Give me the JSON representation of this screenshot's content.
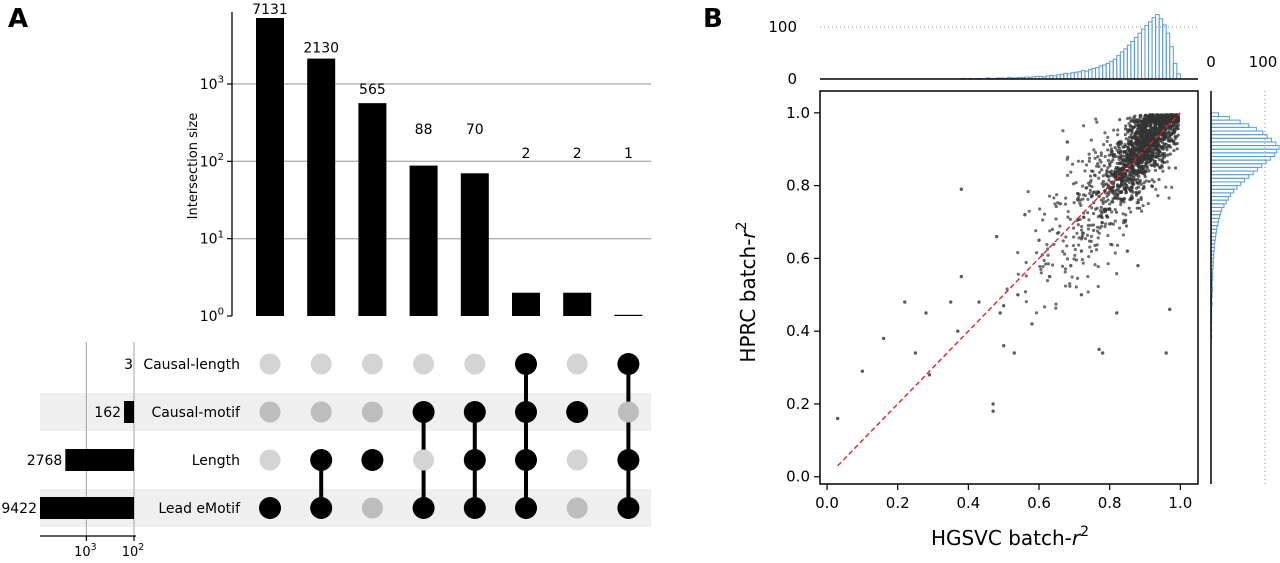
{
  "panel_labels": [
    "A",
    "B"
  ],
  "chart_data": [
    {
      "type": "bar",
      "panel": "A",
      "subtype": "upset",
      "ylabel": "Intersection size",
      "yscale": "log",
      "ylim": [
        1,
        7131
      ],
      "y_ticks": [
        {
          "base": "10",
          "exp": "0",
          "value": 1
        },
        {
          "base": "10",
          "exp": "1",
          "value": 10
        },
        {
          "base": "10",
          "exp": "2",
          "value": 100
        },
        {
          "base": "10",
          "exp": "3",
          "value": 1000
        }
      ],
      "intersections": [
        {
          "value": 7131,
          "label": "7131",
          "members": [
            false,
            false,
            false,
            true
          ]
        },
        {
          "value": 2130,
          "label": "2130",
          "members": [
            false,
            false,
            true,
            true
          ]
        },
        {
          "value": 565,
          "label": "565",
          "members": [
            false,
            false,
            true,
            false
          ]
        },
        {
          "value": 88,
          "label": "88",
          "members": [
            false,
            true,
            false,
            true
          ]
        },
        {
          "value": 70,
          "label": "70",
          "members": [
            false,
            true,
            true,
            true
          ]
        },
        {
          "value": 2,
          "label": "2",
          "members": [
            true,
            true,
            true,
            true
          ]
        },
        {
          "value": 2,
          "label": "2",
          "members": [
            false,
            true,
            false,
            false
          ]
        },
        {
          "value": 1,
          "label": "1",
          "members": [
            true,
            false,
            true,
            true
          ]
        }
      ],
      "sets": [
        {
          "name": "Causal-length",
          "size": 3,
          "label": "3"
        },
        {
          "name": "Causal-motif",
          "size": 162,
          "label": "162"
        },
        {
          "name": "Length",
          "size": 2768,
          "label": "2768"
        },
        {
          "name": "Lead eMotif",
          "size": 9422,
          "label": "9422"
        }
      ],
      "set_size_ticks": [
        {
          "base": "10",
          "exp": "3",
          "value": 1000
        },
        {
          "base": "10",
          "exp": "2",
          "value": 100
        }
      ],
      "colors": {
        "bar": "#000000",
        "dot_on": "#000000",
        "dot_off_light": "#d4d4d4",
        "dot_off_shade": "#bdbdbd",
        "stripe": "#efefef"
      }
    },
    {
      "type": "scatter",
      "panel": "B",
      "xlabel": "HGSVC batch-",
      "ylabel": "HPRC batch-",
      "label_symbol": "r",
      "label_exponent": "2",
      "xlim": [
        -0.02,
        1.05
      ],
      "ylim": [
        -0.02,
        1.06
      ],
      "x_ticks": [
        "0.0",
        "0.2",
        "0.4",
        "0.6",
        "0.8",
        "1.0"
      ],
      "y_ticks": [
        "0.0",
        "0.2",
        "0.4",
        "0.6",
        "0.8",
        "1.0"
      ],
      "diagonal": {
        "from": [
          0.03,
          0.03
        ],
        "to": [
          1.0,
          1.0
        ],
        "color": "#d62728",
        "style": "dashed"
      },
      "outliers": [
        [
          0.03,
          0.16
        ],
        [
          0.1,
          0.29
        ],
        [
          0.16,
          0.38
        ],
        [
          0.22,
          0.48
        ],
        [
          0.25,
          0.34
        ],
        [
          0.28,
          0.45
        ],
        [
          0.29,
          0.28
        ],
        [
          0.35,
          0.48
        ],
        [
          0.37,
          0.4
        ],
        [
          0.38,
          0.79
        ],
        [
          0.38,
          0.55
        ],
        [
          0.43,
          0.48
        ],
        [
          0.47,
          0.2
        ],
        [
          0.47,
          0.18
        ],
        [
          0.5,
          0.36
        ],
        [
          0.53,
          0.34
        ],
        [
          0.54,
          0.5
        ],
        [
          0.58,
          0.42
        ],
        [
          0.6,
          0.65
        ],
        [
          0.63,
          0.55
        ],
        [
          0.66,
          0.75
        ],
        [
          0.68,
          0.92
        ],
        [
          0.72,
          0.5
        ],
        [
          0.77,
          0.35
        ],
        [
          0.78,
          0.34
        ],
        [
          0.82,
          0.45
        ],
        [
          0.85,
          0.62
        ],
        [
          0.88,
          0.58
        ],
        [
          0.96,
          0.34
        ],
        [
          0.97,
          0.46
        ],
        [
          0.72,
          0.62
        ],
        [
          0.56,
          0.72
        ],
        [
          0.48,
          0.66
        ],
        [
          0.49,
          0.45
        ],
        [
          0.5,
          0.47
        ],
        [
          0.69,
          0.58
        ],
        [
          0.8,
          0.86
        ],
        [
          0.77,
          0.77
        ]
      ],
      "point_count_approx": 2000,
      "top_histogram": {
        "ticks": [
          "0",
          "100"
        ],
        "x_start": 0.38,
        "x_end": 1.0,
        "bin_width": 0.01,
        "counts": [
          1,
          0,
          1,
          0,
          1,
          1,
          0,
          2,
          1,
          1,
          2,
          2,
          1,
          3,
          2,
          2,
          3,
          3,
          4,
          3,
          4,
          5,
          5,
          4,
          6,
          7,
          6,
          8,
          9,
          11,
          10,
          12,
          13,
          14,
          16,
          15,
          18,
          20,
          22,
          25,
          27,
          30,
          34,
          38,
          45,
          52,
          58,
          65,
          72,
          80,
          88,
          96,
          103,
          110,
          118,
          124,
          116,
          104,
          88,
          62,
          30,
          10
        ]
      },
      "right_histogram": {
        "ticks": [
          "0",
          "100"
        ],
        "y_start": 0.38,
        "y_end": 1.0,
        "bin_width": 0.01,
        "counts": [
          1,
          0,
          1,
          0,
          1,
          1,
          1,
          1,
          1,
          2,
          1,
          2,
          2,
          3,
          2,
          2,
          3,
          3,
          3,
          4,
          4,
          4,
          5,
          5,
          6,
          6,
          7,
          8,
          9,
          10,
          11,
          13,
          14,
          16,
          18,
          20,
          24,
          28,
          32,
          36,
          42,
          48,
          55,
          62,
          70,
          78,
          86,
          94,
          102,
          110,
          118,
          122,
          126,
          120,
          112,
          104,
          96,
          84,
          70,
          54,
          34,
          14
        ]
      },
      "colors": {
        "point": "#333333",
        "hist": "#5b9bd5",
        "diagonal": "#d62728"
      }
    }
  ]
}
